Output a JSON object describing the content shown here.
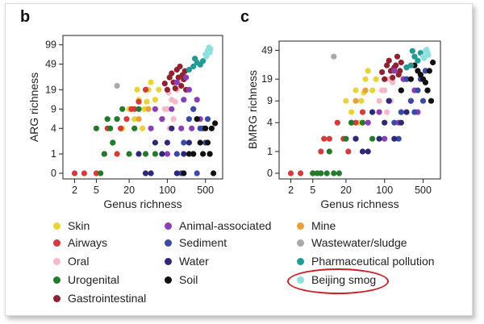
{
  "panels": [
    {
      "letter": "b",
      "ylabel": "ARG richness",
      "xlabel": "Genus richness",
      "x_ticks": [
        "2",
        "5",
        "20",
        "100",
        "500"
      ],
      "y_ticks": [
        "0",
        "1",
        "4",
        "9",
        "19",
        "49",
        "99"
      ]
    },
    {
      "letter": "c",
      "ylabel": "BMRG richness",
      "xlabel": "Genus richness",
      "x_ticks": [
        "2",
        "5",
        "20",
        "100",
        "500"
      ],
      "y_ticks": [
        "0",
        "1",
        "4",
        "9",
        "19",
        "49"
      ]
    }
  ],
  "legend": [
    {
      "label": "Skin",
      "color": "#e8d33a"
    },
    {
      "label": "Airways",
      "color": "#d63b3b"
    },
    {
      "label": "Oral",
      "color": "#f6b8c8"
    },
    {
      "label": "Urogenital",
      "color": "#237a2b"
    },
    {
      "label": "Gastrointestinal",
      "color": "#8f2230"
    },
    {
      "label": "Animal-associated",
      "color": "#8a3fb5"
    },
    {
      "label": "Sediment",
      "color": "#3a4aa8"
    },
    {
      "label": "Water",
      "color": "#2d2878"
    },
    {
      "label": "Soil",
      "color": "#111111"
    },
    {
      "label": "Mine",
      "color": "#e8a03a"
    },
    {
      "label": "Wastewater/sludge",
      "color": "#a8a8a8"
    },
    {
      "label": "Pharmaceutical pollution",
      "color": "#239a92"
    },
    {
      "label": "Beijing smog",
      "color": "#8ee0de"
    }
  ],
  "chart_data": [
    {
      "type": "scatter",
      "panel": "b",
      "xscale": "log",
      "yscale": "log1p",
      "xlim": [
        1.5,
        900
      ],
      "ylim": [
        0,
        110
      ],
      "xlabel": "Genus richness",
      "ylabel": "ARG richness",
      "series": [
        {
          "name": "Skin",
          "points": [
            [
              20,
              9
            ],
            [
              30,
              13
            ],
            [
              45,
              19
            ],
            [
              60,
              13
            ],
            [
              25,
              6
            ],
            [
              38,
              9
            ],
            [
              70,
              19
            ],
            [
              15,
              4
            ],
            [
              28,
              19
            ],
            [
              50,
              25
            ],
            [
              35,
              4
            ],
            [
              42,
              12
            ]
          ]
        },
        {
          "name": "Airways",
          "points": [
            [
              2,
              0
            ],
            [
              3,
              0
            ],
            [
              5,
              0
            ],
            [
              7,
              1
            ],
            [
              10,
              2
            ],
            [
              14,
              4
            ],
            [
              18,
              6
            ],
            [
              25,
              9
            ],
            [
              8,
              4
            ],
            [
              12,
              1
            ],
            [
              30,
              12
            ],
            [
              40,
              19
            ],
            [
              22,
              9
            ]
          ]
        },
        {
          "name": "Oral",
          "points": [
            [
              80,
              6
            ],
            [
              100,
              9
            ],
            [
              120,
              13
            ],
            [
              150,
              19
            ],
            [
              110,
              4
            ],
            [
              130,
              6
            ],
            [
              90,
              9
            ],
            [
              160,
              25
            ],
            [
              140,
              12
            ],
            [
              105,
              17
            ]
          ]
        },
        {
          "name": "Urogenital",
          "points": [
            [
              5,
              4
            ],
            [
              7,
              1
            ],
            [
              9,
              4
            ],
            [
              12,
              6
            ],
            [
              15,
              9
            ],
            [
              20,
              1
            ],
            [
              6,
              0
            ],
            [
              10,
              2
            ],
            [
              25,
              4
            ],
            [
              8,
              6
            ],
            [
              30,
              9
            ],
            [
              40,
              1
            ],
            [
              60,
              1
            ]
          ]
        },
        {
          "name": "Gastrointestinal",
          "points": [
            [
              100,
              19
            ],
            [
              130,
              25
            ],
            [
              160,
              30
            ],
            [
              180,
              22
            ],
            [
              120,
              35
            ],
            [
              150,
              40
            ],
            [
              200,
              28
            ],
            [
              220,
              19
            ],
            [
              110,
              30
            ],
            [
              170,
              45
            ],
            [
              140,
              20
            ],
            [
              190,
              33
            ],
            [
              90,
              24
            ],
            [
              210,
              38
            ]
          ]
        },
        {
          "name": "Animal-associated",
          "points": [
            [
              50,
              4
            ],
            [
              80,
              6
            ],
            [
              120,
              9
            ],
            [
              200,
              13
            ],
            [
              250,
              19
            ],
            [
              300,
              9
            ],
            [
              180,
              4
            ],
            [
              350,
              13
            ],
            [
              150,
              25
            ],
            [
              400,
              6
            ],
            [
              220,
              30
            ],
            [
              100,
              1
            ],
            [
              60,
              9
            ],
            [
              280,
              4
            ]
          ]
        },
        {
          "name": "Sediment",
          "points": [
            [
              150,
              1
            ],
            [
              200,
              2
            ],
            [
              300,
              1
            ],
            [
              400,
              4
            ],
            [
              250,
              6
            ],
            [
              500,
              2
            ],
            [
              600,
              1
            ],
            [
              350,
              0
            ],
            [
              450,
              4
            ],
            [
              180,
              0
            ],
            [
              550,
              6
            ],
            [
              300,
              9
            ]
          ]
        },
        {
          "name": "Water",
          "points": [
            [
              30,
              1
            ],
            [
              50,
              0
            ],
            [
              80,
              1
            ],
            [
              100,
              2
            ],
            [
              150,
              0
            ],
            [
              200,
              1
            ],
            [
              60,
              2
            ],
            [
              120,
              4
            ],
            [
              40,
              0
            ],
            [
              250,
              2
            ]
          ]
        },
        {
          "name": "Soil",
          "points": [
            [
              200,
              0
            ],
            [
              300,
              1
            ],
            [
              400,
              2
            ],
            [
              500,
              4
            ],
            [
              600,
              1
            ],
            [
              700,
              0
            ],
            [
              350,
              6
            ],
            [
              450,
              1
            ],
            [
              550,
              2
            ],
            [
              650,
              4
            ],
            [
              250,
              1
            ],
            [
              750,
              5
            ]
          ]
        },
        {
          "name": "Mine",
          "points": [
            [
              30,
              6
            ],
            [
              45,
              9
            ]
          ]
        },
        {
          "name": "Wastewater/sludge",
          "points": [
            [
              12,
              22
            ]
          ]
        },
        {
          "name": "Pharmaceutical pollution",
          "points": [
            [
              300,
              45
            ],
            [
              350,
              52
            ],
            [
              400,
              48
            ],
            [
              250,
              40
            ],
            [
              450,
              55
            ],
            [
              320,
              60
            ]
          ]
        },
        {
          "name": "Beijing smog",
          "points": [
            [
              500,
              70
            ],
            [
              550,
              80
            ],
            [
              600,
              75
            ],
            [
              520,
              65
            ],
            [
              580,
              90
            ],
            [
              620,
              85
            ]
          ]
        }
      ]
    },
    {
      "type": "scatter",
      "panel": "c",
      "xscale": "log",
      "yscale": "log1p",
      "xlim": [
        1.5,
        900
      ],
      "ylim": [
        0,
        55
      ],
      "xlabel": "Genus richness",
      "ylabel": "BMRG richness",
      "series": [
        {
          "name": "Skin",
          "points": [
            [
              20,
              9
            ],
            [
              30,
              13
            ],
            [
              45,
              19
            ],
            [
              60,
              13
            ],
            [
              25,
              6
            ],
            [
              38,
              9
            ],
            [
              70,
              19
            ],
            [
              35,
              4
            ],
            [
              50,
              25
            ],
            [
              42,
              12
            ]
          ]
        },
        {
          "name": "Airways",
          "points": [
            [
              2,
              0
            ],
            [
              3,
              0
            ],
            [
              5,
              0
            ],
            [
              7,
              1
            ],
            [
              10,
              2
            ],
            [
              14,
              4
            ],
            [
              18,
              2
            ],
            [
              25,
              4
            ],
            [
              8,
              2
            ],
            [
              30,
              4
            ],
            [
              40,
              6
            ],
            [
              22,
              1
            ]
          ]
        },
        {
          "name": "Oral",
          "points": [
            [
              80,
              9
            ],
            [
              100,
              13
            ],
            [
              120,
              19
            ],
            [
              150,
              25
            ],
            [
              110,
              6
            ],
            [
              130,
              9
            ],
            [
              90,
              13
            ],
            [
              160,
              30
            ],
            [
              140,
              17
            ]
          ]
        },
        {
          "name": "Urogenital",
          "points": [
            [
              5,
              0
            ],
            [
              7,
              0
            ],
            [
              9,
              0
            ],
            [
              12,
              0
            ],
            [
              15,
              0
            ],
            [
              10,
              1
            ],
            [
              20,
              2
            ],
            [
              25,
              4
            ],
            [
              6,
              0
            ],
            [
              30,
              2
            ],
            [
              40,
              4
            ],
            [
              60,
              2
            ]
          ]
        },
        {
          "name": "Gastrointestinal",
          "points": [
            [
              100,
              19
            ],
            [
              130,
              25
            ],
            [
              160,
              30
            ],
            [
              180,
              22
            ],
            [
              120,
              35
            ],
            [
              150,
              28
            ],
            [
              200,
              33
            ],
            [
              220,
              19
            ],
            [
              110,
              30
            ],
            [
              170,
              40
            ],
            [
              140,
              20
            ],
            [
              190,
              25
            ],
            [
              90,
              24
            ]
          ]
        },
        {
          "name": "Animal-associated",
          "points": [
            [
              50,
              4
            ],
            [
              80,
              6
            ],
            [
              120,
              9
            ],
            [
              200,
              13
            ],
            [
              250,
              19
            ],
            [
              300,
              9
            ],
            [
              180,
              4
            ],
            [
              350,
              13
            ],
            [
              150,
              25
            ],
            [
              400,
              6
            ],
            [
              220,
              19
            ],
            [
              100,
              2
            ]
          ]
        },
        {
          "name": "Sediment",
          "points": [
            [
              150,
              4
            ],
            [
              200,
              6
            ],
            [
              300,
              9
            ],
            [
              400,
              13
            ],
            [
              250,
              19
            ],
            [
              500,
              9
            ],
            [
              600,
              13
            ],
            [
              350,
              6
            ],
            [
              450,
              19
            ],
            [
              180,
              2
            ],
            [
              550,
              25
            ]
          ]
        },
        {
          "name": "Water",
          "points": [
            [
              30,
              2
            ],
            [
              50,
              1
            ],
            [
              80,
              2
            ],
            [
              100,
              4
            ],
            [
              150,
              2
            ],
            [
              200,
              4
            ],
            [
              60,
              6
            ],
            [
              120,
              9
            ],
            [
              40,
              1
            ],
            [
              250,
              6
            ]
          ]
        },
        {
          "name": "Soil",
          "points": [
            [
              200,
              13
            ],
            [
              300,
              19
            ],
            [
              400,
              25
            ],
            [
              500,
              19
            ],
            [
              600,
              13
            ],
            [
              700,
              9
            ],
            [
              350,
              30
            ],
            [
              450,
              22
            ],
            [
              550,
              17
            ],
            [
              650,
              25
            ],
            [
              250,
              28
            ],
            [
              750,
              33
            ]
          ]
        },
        {
          "name": "Mine",
          "points": [
            [
              30,
              9
            ],
            [
              45,
              13
            ]
          ]
        },
        {
          "name": "Wastewater/sludge",
          "points": [
            [
              12,
              40
            ]
          ]
        },
        {
          "name": "Pharmaceutical pollution",
          "points": [
            [
              300,
              30
            ],
            [
              350,
              40
            ],
            [
              400,
              35
            ],
            [
              250,
              28
            ],
            [
              450,
              45
            ],
            [
              320,
              48
            ]
          ]
        },
        {
          "name": "Beijing smog",
          "points": [
            [
              500,
              40
            ],
            [
              550,
              48
            ],
            [
              600,
              45
            ],
            [
              520,
              38
            ],
            [
              580,
              50
            ],
            [
              620,
              42
            ]
          ]
        }
      ]
    }
  ]
}
